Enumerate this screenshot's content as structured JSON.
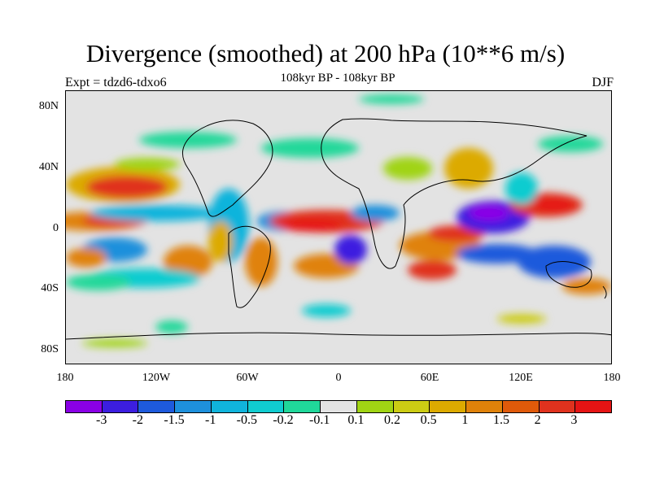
{
  "header": {
    "title": "Divergence (smoothed) at 200 hPa (10**6 m/s)",
    "subtitle": "108kyr BP - 108kyr BP",
    "left_label": "Expt = tdzd6-tdxo6",
    "right_label": "DJF"
  },
  "map": {
    "y_ticks": [
      "80N",
      "40N",
      "0",
      "40S",
      "80S"
    ],
    "x_ticks": [
      "180",
      "120W",
      "60W",
      "0",
      "60E",
      "120E",
      "180"
    ],
    "background_color": "#e3e3e3"
  },
  "colorbar": {
    "colors": [
      "#8a00e6",
      "#3c1ee0",
      "#1e5adc",
      "#1e90dc",
      "#10b4dc",
      "#10ccd0",
      "#20d89a",
      "#e3e3e3",
      "#a0d414",
      "#cccc14",
      "#dcaa00",
      "#e0820a",
      "#e05a0a",
      "#e0321e",
      "#e61414"
    ],
    "labels": [
      "-3",
      "-2",
      "-1.5",
      "-1",
      "-0.5",
      "-0.2",
      "-0.1",
      "0.1",
      "0.2",
      "0.5",
      "1",
      "1.5",
      "2",
      "3"
    ]
  }
}
